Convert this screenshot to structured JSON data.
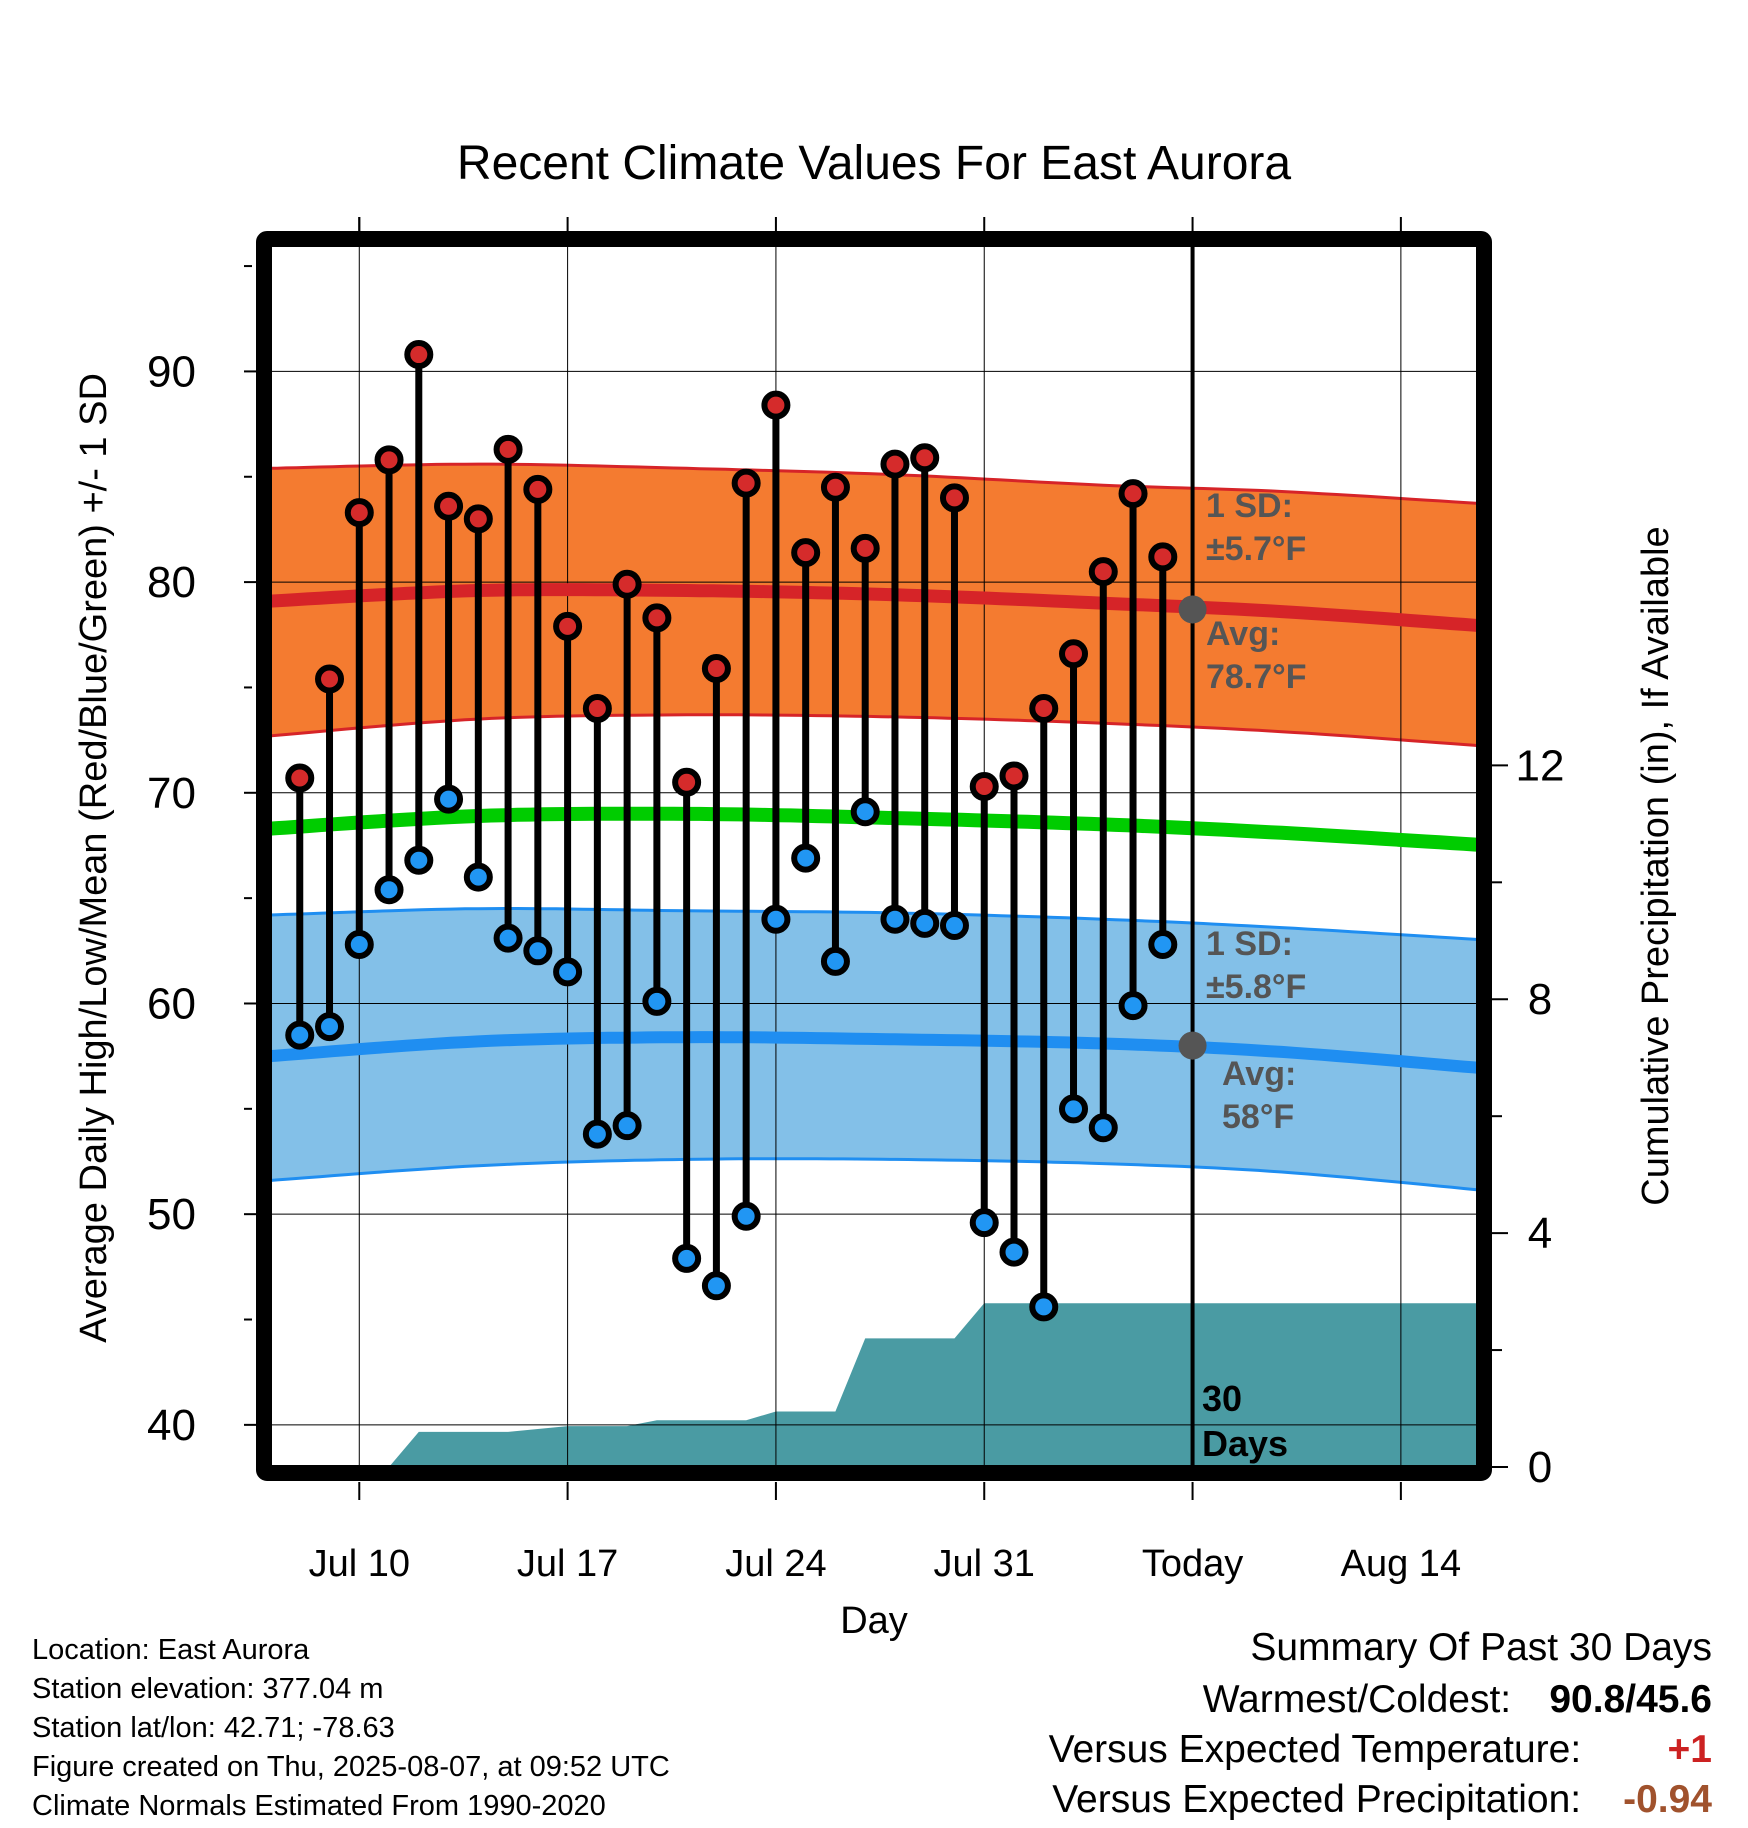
{
  "chart_data": {
    "type": "line",
    "title": "Recent Climate Values For East Aurora",
    "xlabel": "Day",
    "ylabel": "Average Daily High/Low/Mean (Red/Blue/Green) +/- 1 SD",
    "y2label": "Cumulative Precipitation (in), If Available",
    "ylim": [
      38,
      96
    ],
    "y2lim": [
      0,
      20.9
    ],
    "yticks": [
      40,
      50,
      60,
      70,
      80,
      90
    ],
    "y2ticks": [
      0,
      4,
      8,
      12
    ],
    "grid": true,
    "x_axis": {
      "start": "2025-07-07",
      "end": "2025-08-17",
      "ticks": [
        {
          "date": "2025-07-10",
          "label": "Jul 10"
        },
        {
          "date": "2025-07-17",
          "label": "Jul 17"
        },
        {
          "date": "2025-07-24",
          "label": "Jul 24"
        },
        {
          "date": "2025-07-31",
          "label": "Jul 31"
        },
        {
          "date": "2025-08-07",
          "label": "Today"
        },
        {
          "date": "2025-08-14",
          "label": "Aug 14"
        }
      ]
    },
    "today": "2025-08-07",
    "today_label": "30 Days",
    "daily": {
      "dates": [
        "2025-07-08",
        "2025-07-09",
        "2025-07-10",
        "2025-07-11",
        "2025-07-12",
        "2025-07-13",
        "2025-07-14",
        "2025-07-15",
        "2025-07-16",
        "2025-07-17",
        "2025-07-18",
        "2025-07-19",
        "2025-07-20",
        "2025-07-21",
        "2025-07-22",
        "2025-07-23",
        "2025-07-24",
        "2025-07-25",
        "2025-07-26",
        "2025-07-27",
        "2025-07-28",
        "2025-07-29",
        "2025-07-30",
        "2025-07-31",
        "2025-08-01",
        "2025-08-02",
        "2025-08-03",
        "2025-08-04",
        "2025-08-05",
        "2025-08-06"
      ],
      "high": [
        70.7,
        75.4,
        83.3,
        85.8,
        90.8,
        83.6,
        83.0,
        86.3,
        84.4,
        77.9,
        74.0,
        79.9,
        78.3,
        70.5,
        75.9,
        84.7,
        88.4,
        81.4,
        84.5,
        81.6,
        85.6,
        85.9,
        84.0,
        70.3,
        70.8,
        74.0,
        76.6,
        80.5,
        84.2,
        81.2
      ],
      "low": [
        58.5,
        58.9,
        62.8,
        65.4,
        66.8,
        69.7,
        66.0,
        63.1,
        62.5,
        61.5,
        53.8,
        54.2,
        60.1,
        47.9,
        46.6,
        49.9,
        64.0,
        66.9,
        62.0,
        69.1,
        64.0,
        63.8,
        63.7,
        49.6,
        48.2,
        45.6,
        55.0,
        54.1,
        59.9,
        62.8
      ]
    },
    "normals": {
      "dates": [
        "2025-07-07",
        "2025-07-14",
        "2025-07-21",
        "2025-07-28",
        "2025-08-04",
        "2025-08-10",
        "2025-08-17"
      ],
      "high_mean": [
        79.1,
        79.6,
        79.6,
        79.4,
        79.0,
        78.6,
        77.9
      ],
      "high_upper": [
        85.4,
        85.6,
        85.4,
        85.1,
        84.6,
        84.3,
        83.7
      ],
      "high_lower": [
        72.7,
        73.5,
        73.7,
        73.6,
        73.3,
        72.9,
        72.2
      ],
      "mean": [
        68.3,
        68.9,
        69.0,
        68.8,
        68.5,
        68.1,
        67.5
      ],
      "low_mean": [
        57.5,
        58.2,
        58.4,
        58.3,
        58.1,
        57.7,
        56.9
      ],
      "low_upper": [
        64.2,
        64.5,
        64.4,
        64.3,
        64.0,
        63.6,
        63.0
      ],
      "low_lower": [
        51.6,
        52.3,
        52.6,
        52.6,
        52.4,
        52.0,
        51.1
      ]
    },
    "precip_cumulative": {
      "dates": [
        "2025-07-07",
        "2025-07-08",
        "2025-07-09",
        "2025-07-10",
        "2025-07-11",
        "2025-07-12",
        "2025-07-13",
        "2025-07-14",
        "2025-07-15",
        "2025-07-16",
        "2025-07-17",
        "2025-07-18",
        "2025-07-19",
        "2025-07-20",
        "2025-07-21",
        "2025-07-22",
        "2025-07-23",
        "2025-07-24",
        "2025-07-25",
        "2025-07-26",
        "2025-07-27",
        "2025-07-28",
        "2025-07-29",
        "2025-07-30",
        "2025-07-31",
        "2025-08-01",
        "2025-08-17"
      ],
      "values": [
        0,
        0,
        0,
        0,
        0,
        0.6,
        0.6,
        0.6,
        0.6,
        0.65,
        0.7,
        0.7,
        0.7,
        0.8,
        0.8,
        0.8,
        0.8,
        0.95,
        0.95,
        0.95,
        2.2,
        2.2,
        2.2,
        2.2,
        2.8,
        2.8,
        2.8
      ]
    },
    "annotations": {
      "high_sd": {
        "label": "1 SD:",
        "value": "±5.7°F"
      },
      "high_avg": {
        "label": "Avg:",
        "value": "78.7°F",
        "y": 78.7
      },
      "low_sd": {
        "label": "1 SD:",
        "value": "±5.8°F"
      },
      "low_avg": {
        "label": "Avg:",
        "value": "58°F",
        "y": 58.0
      }
    },
    "colors": {
      "high_band": "#f47b30",
      "high_line": "#d62428",
      "mean_line": "#00cc00",
      "low_band": "#83c0e8",
      "low_line": "#1f8ef1",
      "precip": "#4a9ba3",
      "high_dot": "#d52b2b",
      "low_dot": "#2196f3",
      "avg_marker": "#555555",
      "annotation": "#555555"
    }
  },
  "footer": {
    "location": "Location: East Aurora",
    "elevation": "Station elevation: 377.04 m",
    "latlon": "Station lat/lon: 42.71; -78.63",
    "created": "Figure created on Thu, 2025-08-07, at 09:52 UTC",
    "normals": "Climate Normals Estimated From 1990-2020"
  },
  "summary": {
    "title": "Summary Of Past 30 Days",
    "warm_cold_label": "Warmest/Coldest:",
    "warm_cold_value": "90.8/45.6",
    "temp_label": "Versus Expected Temperature:",
    "temp_value": "+1",
    "temp_color": "#cc2222",
    "precip_label": "Versus Expected Precipitation:",
    "precip_value": "-0.94",
    "precip_color": "#a0522d"
  }
}
